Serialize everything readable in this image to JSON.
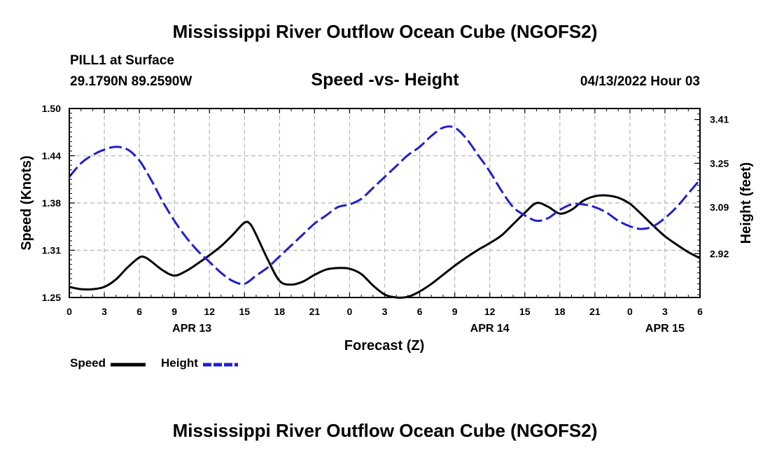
{
  "page": {
    "title": "Mississippi River Outflow Ocean Cube (NGOFS2)",
    "title_bottom": "Mississippi River Outflow Ocean Cube (NGOFS2)",
    "station": "PILL1 at Surface",
    "coords": "29.1790N  89.2590W",
    "subtitle": "Speed -vs- Height",
    "datetime": "04/13/2022 Hour 03"
  },
  "legend": [
    {
      "label": "Speed",
      "color": "#000000",
      "style": "solid"
    },
    {
      "label": "Height",
      "color": "#1f1fd0",
      "style": "dashed"
    }
  ],
  "chart_data": {
    "type": "line",
    "title": "Speed -vs- Height",
    "xlabel": "Forecast (Z)",
    "ylabel": "Speed (Knots)",
    "y2label": "Height (feet)",
    "xlim": [
      0,
      54
    ],
    "ylim": [
      1.25,
      1.5
    ],
    "y2lim": [
      2.76,
      3.45
    ],
    "yticks": [
      "1.50",
      "1.44",
      "1.38",
      "1.31",
      "1.25"
    ],
    "ytick_values": [
      1.5,
      1.4375,
      1.375,
      1.3125,
      1.25
    ],
    "y2ticks": [
      "3.41",
      "3.25",
      "3.09",
      "2.92"
    ],
    "y2tick_values": [
      3.41,
      3.25,
      3.09,
      2.92
    ],
    "xticks": [
      "0",
      "3",
      "6",
      "9",
      "12",
      "15",
      "18",
      "21",
      "0",
      "3",
      "6",
      "9",
      "12",
      "15",
      "18",
      "21",
      "0",
      "3",
      "6"
    ],
    "date_labels": [
      {
        "label": "APR 13",
        "x": 10.5
      },
      {
        "label": "APR 14",
        "x": 36
      },
      {
        "label": "APR 15",
        "x": 51
      }
    ],
    "grid": true,
    "series": [
      {
        "name": "Speed",
        "axis": "left",
        "color": "#000000",
        "x": [
          0,
          1,
          2,
          3,
          4,
          5,
          6,
          6.5,
          7,
          8,
          9,
          10,
          11,
          12,
          13,
          14,
          15,
          15.5,
          16,
          17,
          18,
          19,
          20,
          21,
          22,
          23,
          24,
          25,
          26,
          27,
          28,
          29,
          30,
          31,
          32,
          33,
          34,
          35,
          36,
          37,
          38,
          39,
          40,
          41,
          42,
          43,
          44,
          45,
          46,
          47,
          48,
          49,
          50,
          51,
          52,
          53,
          54
        ],
        "values": [
          1.264,
          1.261,
          1.261,
          1.264,
          1.274,
          1.29,
          1.303,
          1.303,
          1.298,
          1.286,
          1.279,
          1.285,
          1.295,
          1.306,
          1.318,
          1.333,
          1.349,
          1.347,
          1.333,
          1.3,
          1.272,
          1.267,
          1.271,
          1.28,
          1.287,
          1.289,
          1.288,
          1.281,
          1.266,
          1.254,
          1.25,
          1.251,
          1.258,
          1.268,
          1.28,
          1.292,
          1.303,
          1.313,
          1.322,
          1.332,
          1.347,
          1.362,
          1.375,
          1.37,
          1.361,
          1.366,
          1.378,
          1.384,
          1.385,
          1.382,
          1.374,
          1.36,
          1.345,
          1.331,
          1.32,
          1.31,
          1.302
        ]
      },
      {
        "name": "Height",
        "axis": "right",
        "color": "#1f1fd0",
        "x": [
          0,
          1,
          2,
          3,
          4,
          5,
          6,
          7,
          8,
          9,
          10,
          11,
          12,
          13,
          14,
          15,
          16,
          17,
          18,
          19,
          20,
          21,
          22,
          23,
          24,
          25,
          26,
          27,
          28,
          29,
          30,
          31,
          32,
          33,
          34,
          35,
          36,
          37,
          38,
          39,
          40,
          41,
          42,
          43,
          44,
          45,
          46,
          47,
          48,
          49,
          50,
          51,
          52,
          53,
          54
        ],
        "values": [
          3.2,
          3.25,
          3.28,
          3.3,
          3.31,
          3.3,
          3.26,
          3.19,
          3.11,
          3.04,
          2.98,
          2.93,
          2.89,
          2.85,
          2.82,
          2.81,
          2.84,
          2.87,
          2.91,
          2.95,
          2.99,
          3.03,
          3.06,
          3.09,
          3.1,
          3.12,
          3.16,
          3.2,
          3.24,
          3.28,
          3.31,
          3.35,
          3.38,
          3.38,
          3.34,
          3.28,
          3.22,
          3.15,
          3.09,
          3.06,
          3.04,
          3.05,
          3.08,
          3.1,
          3.1,
          3.09,
          3.07,
          3.04,
          3.02,
          3.01,
          3.02,
          3.05,
          3.09,
          3.14,
          3.19
        ]
      }
    ]
  }
}
